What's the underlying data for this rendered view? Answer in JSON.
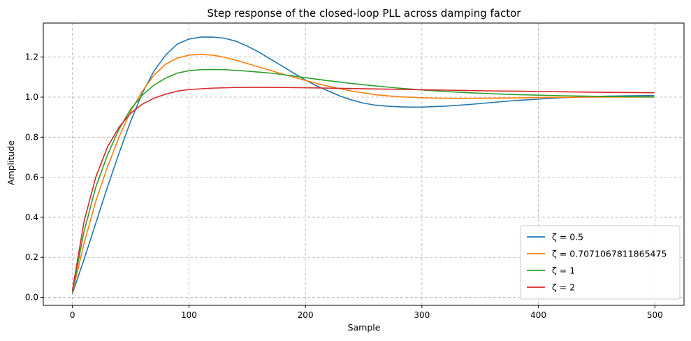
{
  "chart_data": {
    "type": "line",
    "title": "Step response of the closed-loop PLL across damping factor",
    "xlabel": "Sample",
    "ylabel": "Amplitude",
    "xlim": [
      -25,
      525
    ],
    "ylim": [
      -0.04,
      1.37
    ],
    "xticks": [
      0,
      100,
      200,
      300,
      400,
      500
    ],
    "yticks": [
      0.0,
      0.2,
      0.4,
      0.6,
      0.8,
      1.0,
      1.2
    ],
    "xtick_labels": [
      "0",
      "100",
      "200",
      "300",
      "400",
      "500"
    ],
    "ytick_labels": [
      "0.0",
      "0.2",
      "0.4",
      "0.6",
      "0.8",
      "1.0",
      "1.2"
    ],
    "grid": true,
    "legend_position": "lower-right",
    "series": [
      {
        "name": "ζ = 0.5",
        "color": "#1f77b4",
        "x": [
          0,
          10,
          20,
          30,
          40,
          50,
          60,
          70,
          80,
          90,
          100,
          110,
          120,
          130,
          140,
          150,
          160,
          170,
          180,
          190,
          200,
          210,
          220,
          230,
          240,
          250,
          260,
          270,
          280,
          290,
          300,
          320,
          340,
          360,
          380,
          400,
          420,
          440,
          460,
          480,
          499
        ],
        "y": [
          0.02,
          0.19,
          0.37,
          0.55,
          0.72,
          0.88,
          1.02,
          1.13,
          1.21,
          1.265,
          1.29,
          1.3,
          1.3,
          1.295,
          1.28,
          1.255,
          1.225,
          1.19,
          1.155,
          1.12,
          1.085,
          1.055,
          1.03,
          1.005,
          0.985,
          0.97,
          0.96,
          0.955,
          0.952,
          0.95,
          0.95,
          0.955,
          0.963,
          0.973,
          0.983,
          0.99,
          0.997,
          1.002,
          1.005,
          1.007,
          1.008
        ]
      },
      {
        "name": "ζ = 0.7071067811865475",
        "color": "#ff7f0e",
        "x": [
          0,
          10,
          20,
          30,
          40,
          50,
          60,
          70,
          80,
          90,
          100,
          110,
          120,
          130,
          140,
          150,
          160,
          170,
          180,
          190,
          200,
          220,
          240,
          260,
          280,
          300,
          320,
          340,
          360,
          380,
          400,
          420,
          440,
          460,
          480,
          499
        ],
        "y": [
          0.025,
          0.27,
          0.48,
          0.65,
          0.8,
          0.93,
          1.03,
          1.11,
          1.165,
          1.195,
          1.21,
          1.213,
          1.21,
          1.2,
          1.185,
          1.168,
          1.15,
          1.133,
          1.116,
          1.1,
          1.083,
          1.054,
          1.03,
          1.012,
          1.002,
          0.997,
          0.994,
          0.994,
          0.995,
          0.996,
          0.998,
          0.999,
          1.0,
          1.0,
          1.0,
          1.0
        ]
      },
      {
        "name": "ζ = 1",
        "color": "#2ca02c",
        "x": [
          0,
          10,
          20,
          30,
          40,
          50,
          60,
          70,
          80,
          90,
          100,
          110,
          120,
          130,
          140,
          150,
          160,
          170,
          180,
          200,
          220,
          240,
          260,
          280,
          300,
          320,
          340,
          360,
          380,
          400,
          420,
          440,
          460,
          480,
          499
        ],
        "y": [
          0.03,
          0.33,
          0.55,
          0.71,
          0.84,
          0.94,
          1.01,
          1.06,
          1.095,
          1.12,
          1.132,
          1.137,
          1.138,
          1.137,
          1.134,
          1.13,
          1.125,
          1.12,
          1.113,
          1.097,
          1.082,
          1.068,
          1.056,
          1.045,
          1.036,
          1.028,
          1.022,
          1.017,
          1.013,
          1.01,
          1.007,
          1.005,
          1.003,
          1.002,
          1.001
        ]
      },
      {
        "name": "ζ = 2",
        "color": "#d62728",
        "x": [
          0,
          10,
          20,
          30,
          40,
          50,
          60,
          70,
          80,
          90,
          100,
          120,
          140,
          160,
          180,
          200,
          220,
          240,
          260,
          280,
          300,
          320,
          340,
          360,
          380,
          400,
          420,
          440,
          460,
          480,
          499
        ],
        "y": [
          0.035,
          0.38,
          0.6,
          0.75,
          0.85,
          0.92,
          0.965,
          0.995,
          1.015,
          1.03,
          1.038,
          1.045,
          1.048,
          1.049,
          1.048,
          1.047,
          1.045,
          1.043,
          1.041,
          1.039,
          1.037,
          1.035,
          1.033,
          1.031,
          1.03,
          1.028,
          1.027,
          1.025,
          1.024,
          1.023,
          1.022
        ]
      }
    ]
  }
}
